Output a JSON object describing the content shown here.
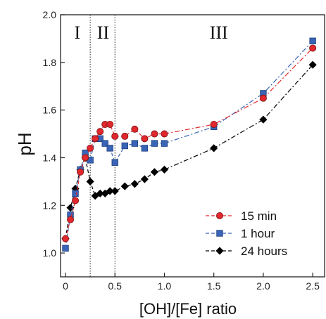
{
  "chart_data": {
    "type": "line",
    "title": "",
    "xlabel": "[OH]/[Fe] ratio",
    "ylabel": "pH",
    "xlim": [
      -0.05,
      2.62
    ],
    "ylim": [
      0.9,
      2.0
    ],
    "xticks": [
      0,
      0.5,
      1,
      1.5,
      2,
      2.5
    ],
    "xtick_labels": [
      "0",
      "0.5",
      "1.0",
      "1.5",
      "2.0",
      "2.5"
    ],
    "yticks": [
      1.0,
      1.2,
      1.4,
      1.6,
      1.8,
      2.0
    ],
    "ytick_labels": [
      "1.0",
      "1.2",
      "1.4",
      "1.6",
      "1.8",
      "2.0"
    ],
    "grid": false,
    "legend_position": "bottom-right",
    "region_boundaries": [
      0.25,
      0.5
    ],
    "regions": [
      {
        "label": "I",
        "x": 0.12
      },
      {
        "label": "II",
        "x": 0.38
      },
      {
        "label": "III",
        "x": 1.55
      }
    ],
    "series": [
      {
        "name": "15 min",
        "color": "#e0282e",
        "marker": "circle",
        "x": [
          0,
          0.05,
          0.1,
          0.15,
          0.2,
          0.25,
          0.3,
          0.35,
          0.4,
          0.45,
          0.5,
          0.6,
          0.7,
          0.8,
          0.9,
          1.0,
          1.5,
          2.0,
          2.5
        ],
        "y": [
          1.06,
          1.14,
          1.22,
          1.34,
          1.4,
          1.44,
          1.48,
          1.51,
          1.54,
          1.54,
          1.49,
          1.49,
          1.52,
          1.48,
          1.5,
          1.5,
          1.54,
          1.65,
          1.86
        ]
      },
      {
        "name": "1 hour",
        "color": "#3a64b5",
        "marker": "square",
        "x": [
          0,
          0.05,
          0.1,
          0.15,
          0.2,
          0.25,
          0.3,
          0.35,
          0.4,
          0.45,
          0.5,
          0.6,
          0.7,
          0.8,
          0.9,
          1.0,
          1.5,
          2.0,
          2.5
        ],
        "y": [
          1.02,
          1.16,
          1.25,
          1.35,
          1.42,
          1.39,
          1.48,
          1.48,
          1.46,
          1.44,
          1.38,
          1.45,
          1.46,
          1.44,
          1.46,
          1.46,
          1.53,
          1.67,
          1.89
        ]
      },
      {
        "name": "24 hours",
        "color": "#000000",
        "marker": "diamond",
        "x": [
          0,
          0.05,
          0.1,
          0.15,
          0.2,
          0.25,
          0.3,
          0.35,
          0.4,
          0.45,
          0.5,
          0.6,
          0.7,
          0.8,
          0.9,
          1.0,
          1.5,
          2.0,
          2.5
        ],
        "y": [
          1.06,
          1.19,
          1.27,
          1.35,
          1.4,
          1.3,
          1.24,
          1.25,
          1.25,
          1.26,
          1.26,
          1.28,
          1.29,
          1.31,
          1.34,
          1.35,
          1.44,
          1.56,
          1.79
        ]
      }
    ]
  }
}
